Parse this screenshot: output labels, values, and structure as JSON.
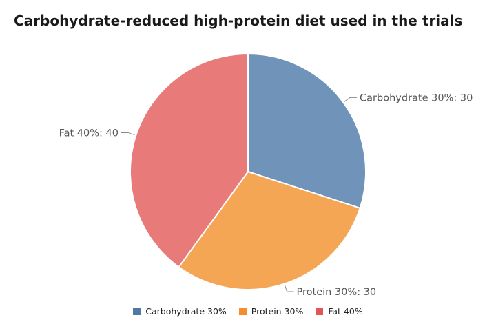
{
  "chart_data": {
    "type": "pie",
    "title": "Carbohydrate-reduced high-protein diet used in the trials",
    "categories": [
      "Carbohydrate 30%",
      "Protein 30%",
      "Fat 40%"
    ],
    "values": [
      30,
      30,
      40
    ],
    "slice_labels": [
      "Carbohydrate 30%: 30",
      "Protein 30%: 30",
      "Fat 40%: 40"
    ],
    "colors": [
      "#7094b9",
      "#f5a655",
      "#e87a7a"
    ],
    "legend_colors": [
      "#4e79a7",
      "#f28e2b",
      "#e15759"
    ],
    "legend_position": "bottom"
  }
}
